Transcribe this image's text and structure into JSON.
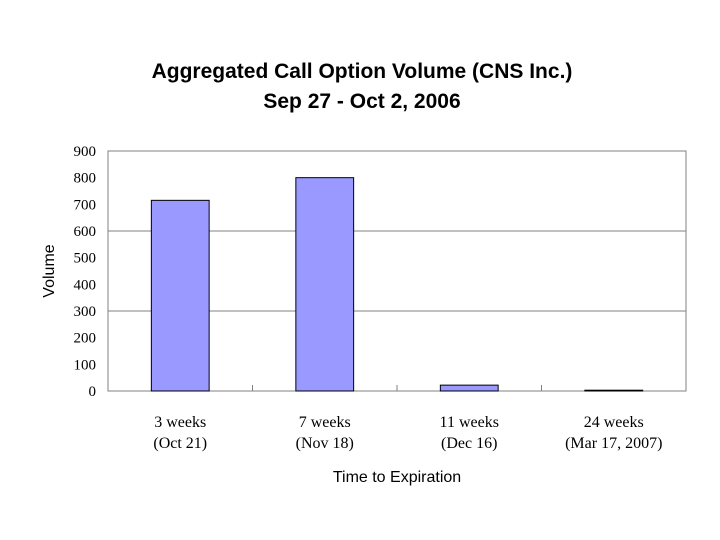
{
  "chart_data": {
    "type": "bar",
    "title": "Aggregated Call Option Volume (CNS Inc.)",
    "subtitle": "Sep 27 - Oct 2, 2006",
    "xlabel": "Time to Expiration",
    "ylabel": "Volume",
    "ylim": [
      0,
      900
    ],
    "yticks": [
      "0",
      "100",
      "200",
      "300",
      "400",
      "500",
      "600",
      "700",
      "800",
      "900"
    ],
    "categories": [
      {
        "line1": "3 weeks",
        "line2": "(Oct 21)"
      },
      {
        "line1": "7 weeks",
        "line2": "(Nov 18)"
      },
      {
        "line1": "11 weeks",
        "line2": "(Dec 16)"
      },
      {
        "line1": "24 weeks",
        "line2": "(Mar 17, 2007)"
      }
    ],
    "values": [
      715,
      800,
      22,
      3
    ],
    "grid": true,
    "legend": "none",
    "colors": {
      "bar": "#9999ff",
      "bar_edge": "#000000",
      "grid": "#808080",
      "axis": "#808080"
    }
  }
}
